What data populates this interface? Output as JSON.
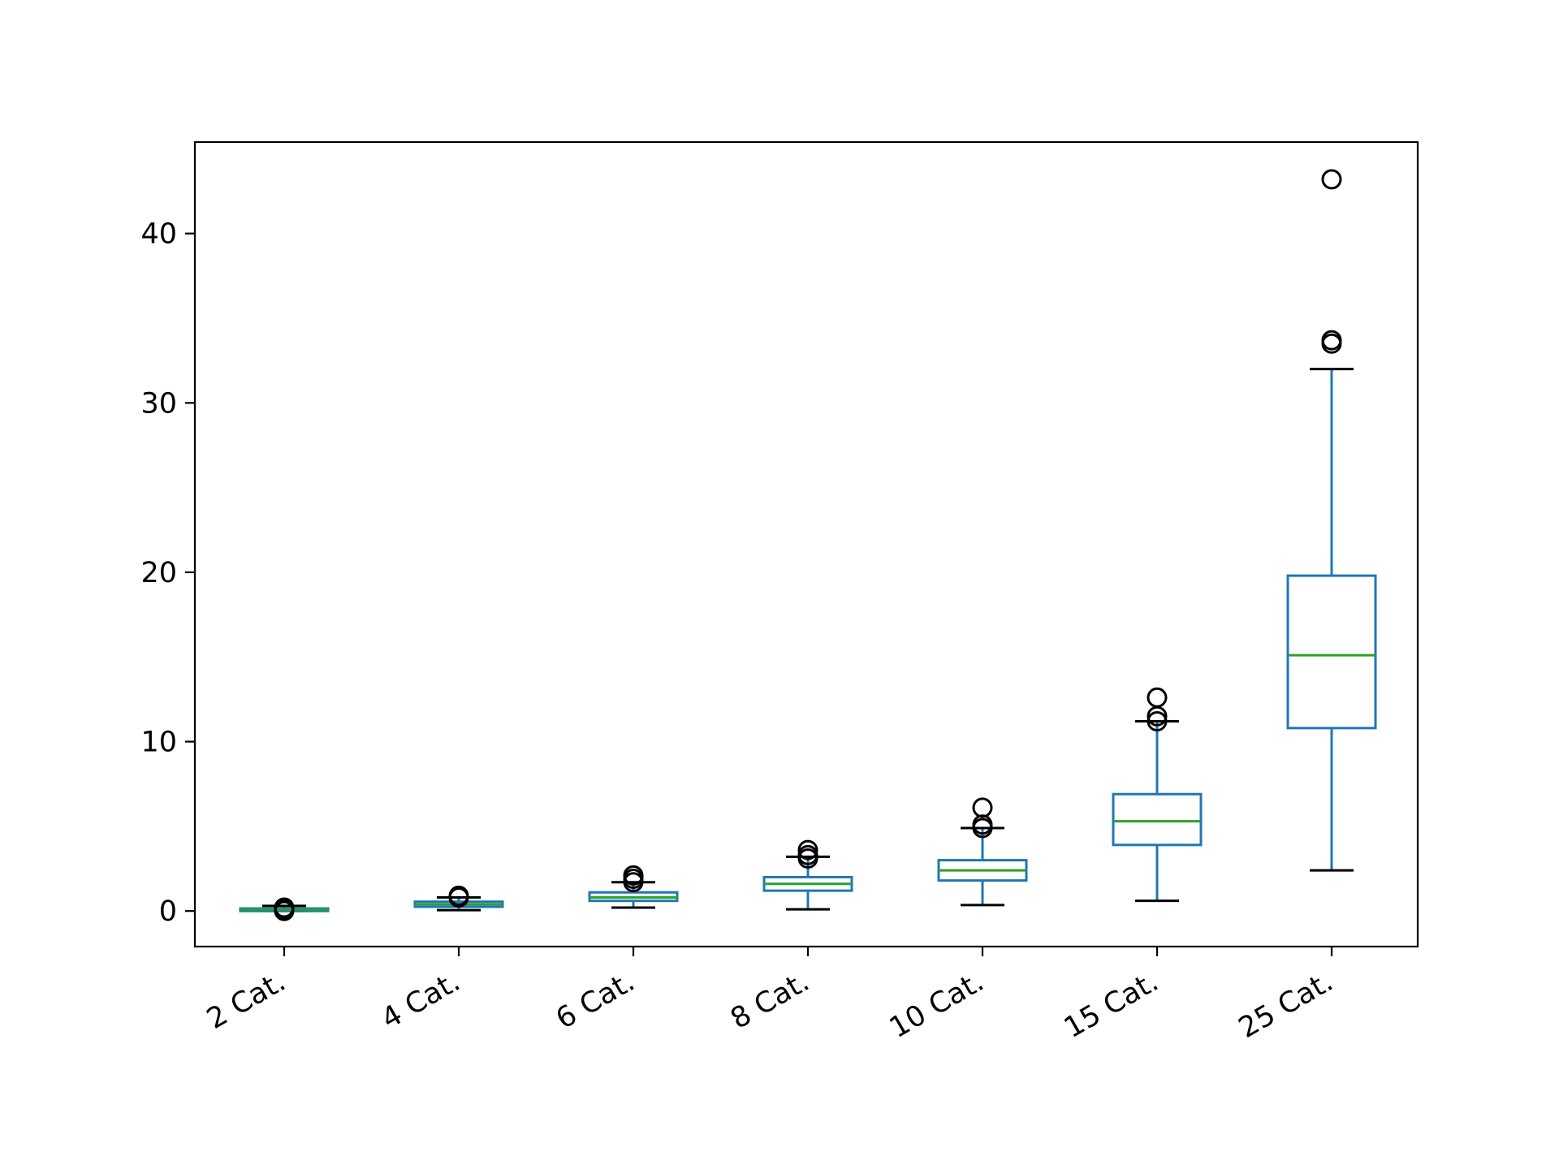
{
  "chart_data": {
    "type": "box",
    "title": "",
    "xlabel": "",
    "ylabel": "",
    "ylim": [
      -2.1,
      45.4
    ],
    "yticks": [
      0,
      10,
      20,
      30,
      40
    ],
    "grid": false,
    "colors": {
      "box": "#1f77b4",
      "median": "#2ca02c",
      "whisker": "#1f77b4",
      "cap": "#000000",
      "flier": "#000000"
    },
    "categories": [
      "2 Cat.",
      "4 Cat.",
      "6 Cat.",
      "8 Cat.",
      "10 Cat.",
      "15 Cat.",
      "25 Cat."
    ],
    "boxes": [
      {
        "q1": 0.0,
        "median": 0.1,
        "q3": 0.15,
        "whisker_low": 0.0,
        "whisker_high": 0.3,
        "fliers": [
          0.0,
          0.1,
          0.2
        ]
      },
      {
        "q1": 0.25,
        "median": 0.4,
        "q3": 0.55,
        "whisker_low": 0.05,
        "whisker_high": 0.8,
        "fliers": [
          0.8,
          0.9
        ]
      },
      {
        "q1": 0.6,
        "median": 0.8,
        "q3": 1.1,
        "whisker_low": 0.2,
        "whisker_high": 1.7,
        "fliers": [
          1.7,
          1.9,
          2.1
        ]
      },
      {
        "q1": 1.2,
        "median": 1.6,
        "q3": 2.0,
        "whisker_low": 0.1,
        "whisker_high": 3.2,
        "fliers": [
          3.1,
          3.3,
          3.6
        ]
      },
      {
        "q1": 1.8,
        "median": 2.4,
        "q3": 3.0,
        "whisker_low": 0.35,
        "whisker_high": 4.9,
        "fliers": [
          4.9,
          5.1,
          6.1
        ]
      },
      {
        "q1": 3.9,
        "median": 5.3,
        "q3": 6.9,
        "whisker_low": 0.6,
        "whisker_high": 11.2,
        "fliers": [
          11.2,
          11.5,
          12.6
        ]
      },
      {
        "q1": 10.8,
        "median": 15.1,
        "q3": 19.8,
        "whisker_low": 2.4,
        "whisker_high": 32.0,
        "fliers": [
          33.5,
          33.7,
          43.2
        ]
      }
    ]
  }
}
